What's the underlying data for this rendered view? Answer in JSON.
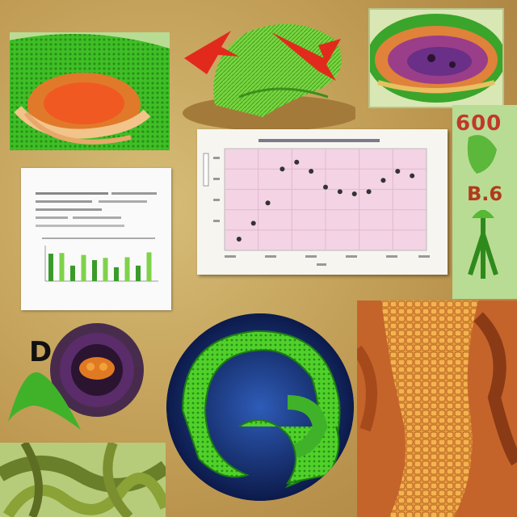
{
  "labels": {
    "top_right_numeral": "600",
    "mid_right_code": "B.6",
    "left_letter": "D"
  },
  "colors": {
    "background": "#c9a860",
    "leaf_green": "#4fd12a",
    "tissue_orange": "#d9782c",
    "chart_pink": "#f3d3e4",
    "pale_green": "#b9dc94"
  },
  "chart_data": {
    "type": "scatter",
    "x": [
      1,
      2,
      3,
      4,
      5,
      6,
      7,
      8,
      9,
      10,
      11,
      12,
      13
    ],
    "y": [
      0.5,
      1.2,
      2.1,
      3.6,
      3.9,
      3.5,
      2.8,
      2.6,
      2.5,
      2.6,
      3.1,
      3.5,
      3.3
    ],
    "grid": true
  },
  "bar_chart_data": {
    "type": "bar",
    "series": [
      {
        "values": [
          8.5,
          8.7,
          4.8,
          8.1,
          6.5,
          7.2,
          4.3,
          7.4,
          4.8,
          8.9
        ]
      }
    ],
    "colors": [
      "#3a9b2a",
      "#7fd24a"
    ]
  }
}
